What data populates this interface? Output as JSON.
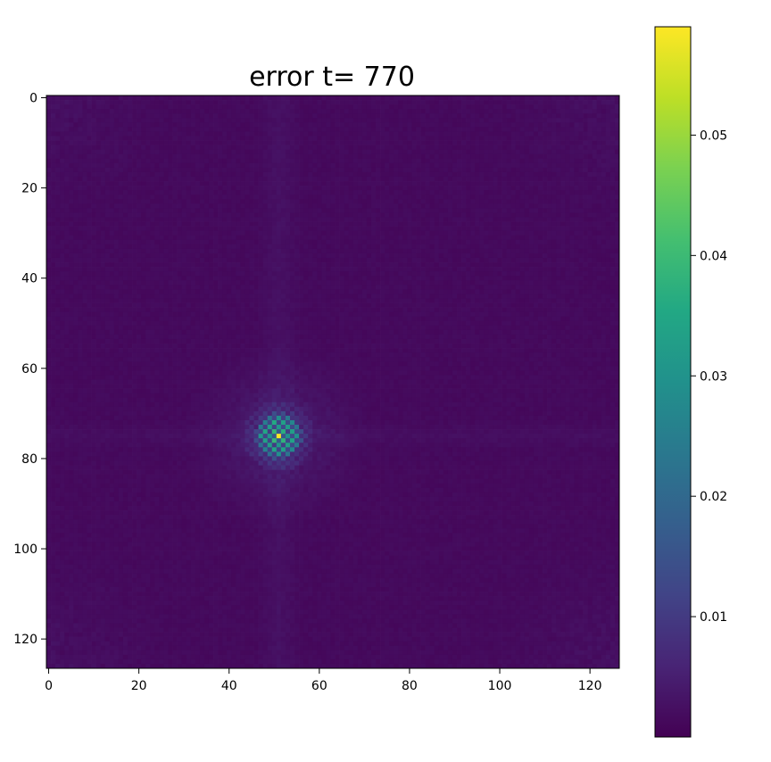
{
  "chart_data": {
    "type": "heatmap",
    "title": "error t= 770",
    "xlabel": "",
    "ylabel": "",
    "grid": false,
    "xlim": [
      -0.5,
      126.5
    ],
    "ylim": [
      126.5,
      -0.5
    ],
    "x_ticks": [
      0,
      20,
      40,
      60,
      80,
      100,
      120
    ],
    "y_ticks": [
      0,
      20,
      40,
      60,
      80,
      100,
      120
    ],
    "x_tick_labels": [
      "0",
      "20",
      "40",
      "60",
      "80",
      "100",
      "120"
    ],
    "y_tick_labels": [
      "0",
      "20",
      "40",
      "60",
      "80",
      "100",
      "120"
    ],
    "colormap": "viridis",
    "colorbar": {
      "range": [
        0.0,
        0.059
      ],
      "ticks": [
        0.01,
        0.02,
        0.03,
        0.04,
        0.05
      ],
      "tick_labels": [
        "0.01",
        "0.02",
        "0.03",
        "0.04",
        "0.05"
      ]
    },
    "grid_size": [
      127,
      127
    ],
    "features": {
      "background_error": 0.0015,
      "peak_center": [
        51,
        75
      ],
      "peak_max_error": 0.059,
      "peak_radius": 7
    }
  }
}
